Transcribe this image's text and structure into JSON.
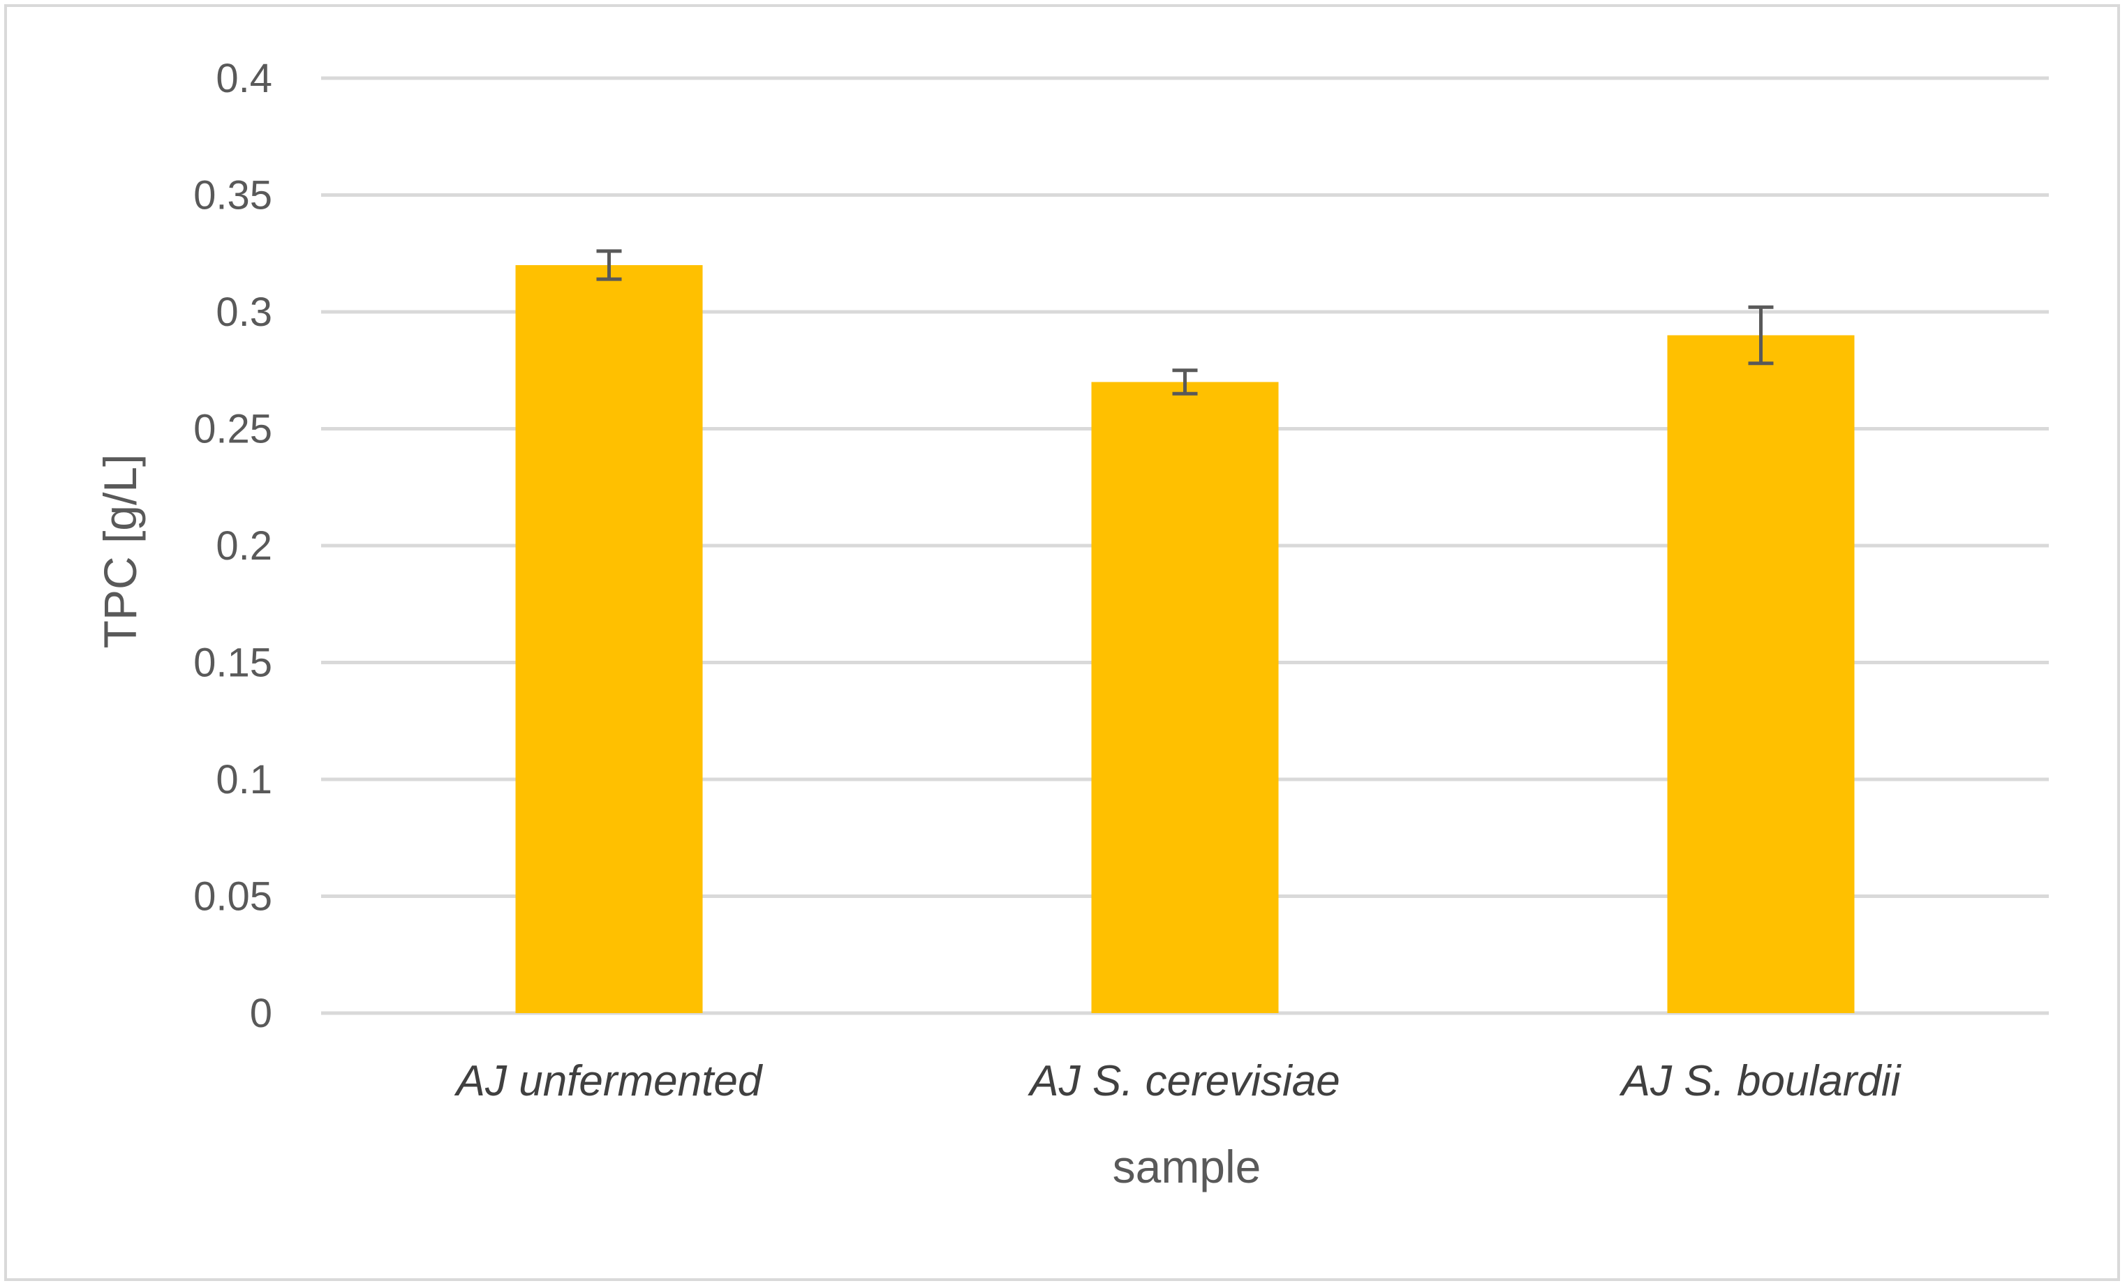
{
  "chart_data": {
    "type": "bar",
    "title": "",
    "xlabel": "sample",
    "ylabel": "TPC [g/L]",
    "categories": [
      "AJ unfermented",
      "AJ S. cerevisiae",
      "AJ S. boulardii"
    ],
    "values": [
      0.32,
      0.27,
      0.29
    ],
    "error_low": [
      0.314,
      0.265,
      0.278
    ],
    "error_high": [
      0.326,
      0.275,
      0.302
    ],
    "ylim": [
      0,
      0.4
    ],
    "yticks": [
      "0",
      "0.05",
      "0.1",
      "0.15",
      "0.2",
      "0.25",
      "0.3",
      "0.35",
      "0.4"
    ],
    "grid": true,
    "legend": "none",
    "colors": {
      "bar": "#FFC000",
      "grid": "#d9d9d9",
      "error_bar": "#595959"
    }
  }
}
